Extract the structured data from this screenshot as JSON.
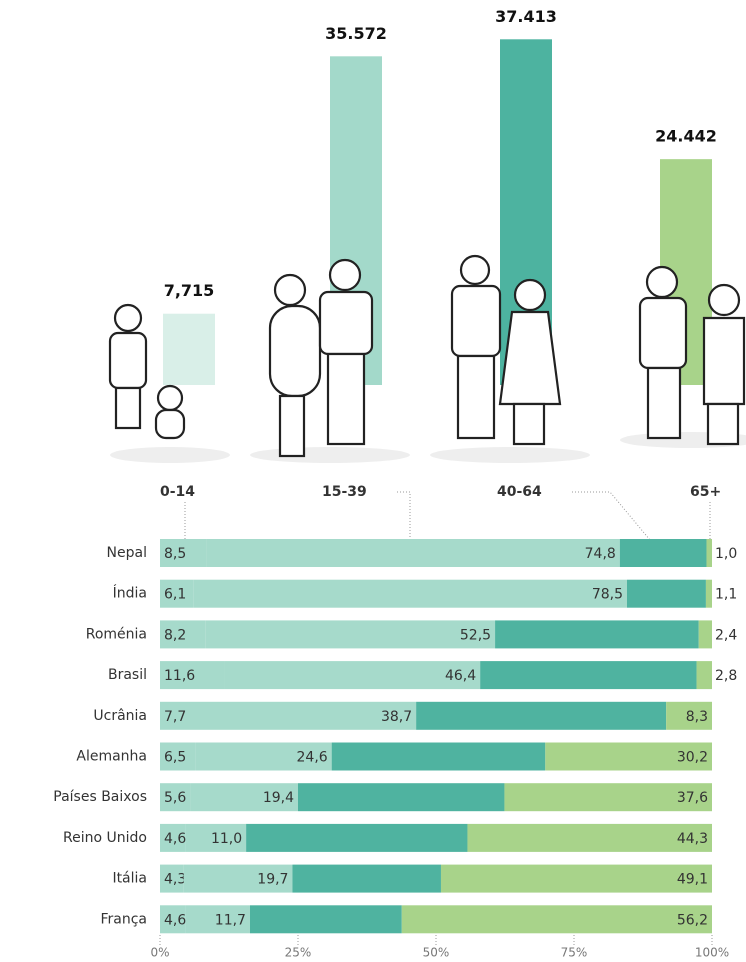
{
  "chart_data": [
    {
      "type": "bar",
      "values": [
        7715,
        35572,
        37413,
        24442
      ],
      "value_labels": [
        "7,715",
        "35.572",
        "37.413",
        "24.442"
      ],
      "colors": [
        "#d9efe8",
        "#a3d9ca",
        "#4db3a0",
        "#a8d38a"
      ]
    },
    {
      "type": "stacked-bar-horizontal",
      "categories": [
        "Nepal",
        "Índia",
        "Roménia",
        "Brasil",
        "Ucrânia",
        "Alemanha",
        "Países Baixos",
        "Reino Unido",
        "Itália",
        "França"
      ],
      "series": [
        {
          "name": "0-14",
          "color": "#a6dacb",
          "values": [
            8.5,
            6.1,
            8.2,
            11.6,
            7.7,
            6.5,
            5.6,
            4.6,
            4.3,
            4.6
          ],
          "value_labels": [
            "8,5",
            "6,1",
            "8,2",
            "11,6",
            "7,7",
            "6,5",
            "5,6",
            "4,6",
            "4,3",
            "4,6"
          ]
        },
        {
          "name": "15-39",
          "color": "#a6dacb",
          "values": [
            74.8,
            78.5,
            52.5,
            46.4,
            38.7,
            24.6,
            19.4,
            11.0,
            19.7,
            11.7
          ],
          "value_labels": [
            "74,8",
            "78,5",
            "52,5",
            "46,4",
            "38,7",
            "24,6",
            "19,4",
            "11,0",
            "19,7",
            "11,7"
          ]
        },
        {
          "name": "40-64",
          "color": "#4fb3a0",
          "values": [
            15.7,
            14.3,
            36.9,
            39.2,
            45.3,
            38.7,
            37.4,
            40.1,
            26.9,
            27.5
          ]
        },
        {
          "name": "65+",
          "color": "#a8d38a",
          "values": [
            1.0,
            1.1,
            2.4,
            2.8,
            8.3,
            30.2,
            37.6,
            44.3,
            49.1,
            56.2
          ],
          "value_labels": [
            "1,0",
            "1,1",
            "2,4",
            "2,8",
            "8,3",
            "30,2",
            "37,6",
            "44,3",
            "49,1",
            "56,2"
          ]
        }
      ],
      "xlim": [
        0,
        100
      ],
      "xticks": [
        {
          "value": 0,
          "label": "0%"
        },
        {
          "value": 25,
          "label": "25%"
        },
        {
          "value": 50,
          "label": "50%"
        },
        {
          "value": 75,
          "label": "75%"
        },
        {
          "value": 100,
          "label": "100%"
        }
      ]
    }
  ]
}
